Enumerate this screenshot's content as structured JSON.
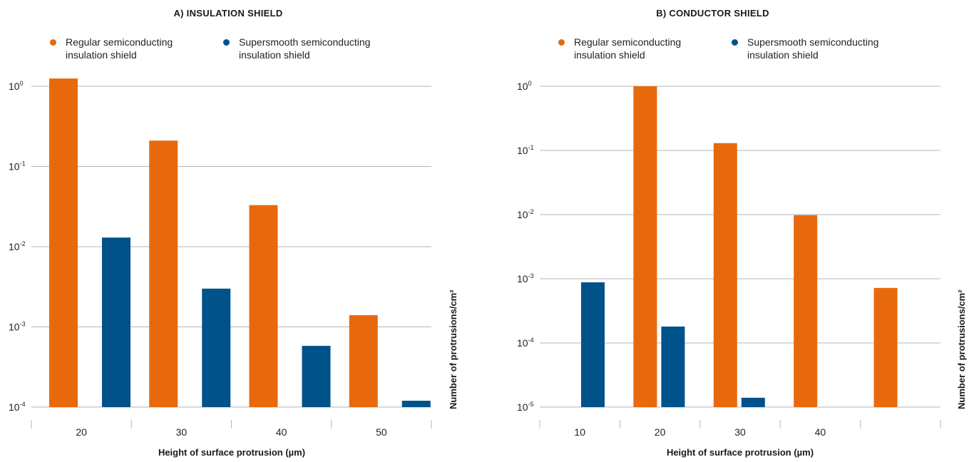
{
  "colors": {
    "regular": "#E8690C",
    "supersmooth": "#00528A",
    "grid": "#b5b5b5"
  },
  "chart_data": [
    {
      "type": "bar",
      "title": "A) INSULATION SHIELD",
      "xlabel": "Height of surface protrusion (µm)",
      "ylabel": "Number of protrusions/cm²",
      "scale": "log",
      "ylim": [
        0.0001,
        1
      ],
      "yticks": [
        {
          "base": "10",
          "exp": "0"
        },
        {
          "base": "10",
          "exp": "-1"
        },
        {
          "base": "10",
          "exp": "-2"
        },
        {
          "base": "10",
          "exp": "-3"
        },
        {
          "base": "10",
          "exp": "-4"
        }
      ],
      "categories": [
        "20",
        "30",
        "40",
        "50"
      ],
      "legend": [
        "Regular semiconducting insulation shield",
        "Supersmooth semiconducting insulation shield"
      ],
      "series": [
        {
          "name": "Regular semiconducting insulation shield",
          "values": [
            1.25,
            0.21,
            0.033,
            0.0014
          ]
        },
        {
          "name": "Supersmooth semiconducting insulation shield",
          "values": [
            0.013,
            0.003,
            0.00058,
            0.00012
          ]
        }
      ]
    },
    {
      "type": "bar",
      "title": "B) CONDUCTOR SHIELD",
      "xlabel": "Height of surface protrusion (µm)",
      "ylabel": "Number of protrusions/cm²",
      "scale": "log",
      "ylim": [
        1e-05,
        1
      ],
      "yticks": [
        {
          "base": "10",
          "exp": "0"
        },
        {
          "base": "10",
          "exp": "-1"
        },
        {
          "base": "10",
          "exp": "-2"
        },
        {
          "base": "10",
          "exp": "-3"
        },
        {
          "base": "10",
          "exp": "-4"
        },
        {
          "base": "10",
          "exp": "-5"
        }
      ],
      "categories": [
        "10",
        "20",
        "30",
        "40",
        ""
      ],
      "legend": [
        "Regular semiconducting insulation shield",
        "Supersmooth semiconducting insulation shield"
      ],
      "series": [
        {
          "name": "Regular semiconducting insulation shield",
          "values": [
            null,
            1.0,
            0.13,
            0.0098,
            0.00072
          ]
        },
        {
          "name": "Supersmooth semiconducting insulation shield",
          "values": [
            0.00088,
            0.00018,
            1.4e-05,
            null,
            null
          ]
        }
      ]
    }
  ],
  "legend_lines": {
    "regular": [
      "Regular semiconducting",
      "insulation shield"
    ],
    "supersmooth": [
      "Supersmooth semiconducting",
      "insulation shield"
    ]
  }
}
